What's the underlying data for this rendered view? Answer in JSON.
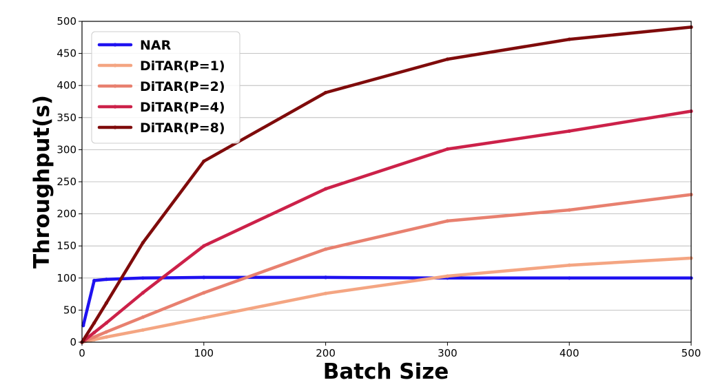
{
  "chart_data": {
    "type": "line",
    "title": "",
    "xlabel": "Batch Size",
    "ylabel": "Throughput(s)",
    "xlim": [
      0,
      500
    ],
    "ylim": [
      0,
      500
    ],
    "xticks": [
      0,
      100,
      200,
      300,
      400,
      500
    ],
    "yticks": [
      0,
      50,
      100,
      150,
      200,
      250,
      300,
      350,
      400,
      450,
      500
    ],
    "grid": "horizontal",
    "legend_position": "top-left",
    "series": [
      {
        "name": "NAR",
        "color": "#1f12f0",
        "x": [
          1,
          10,
          20,
          50,
          100,
          200,
          300,
          400,
          500
        ],
        "y": [
          26,
          96,
          98,
          100,
          101,
          101,
          100,
          100,
          100
        ]
      },
      {
        "name": "DiTAR(P=1)",
        "color": "#f4a582",
        "x": [
          0,
          10,
          20,
          50,
          100,
          200,
          300,
          400,
          500
        ],
        "y": [
          0,
          4,
          8,
          19,
          38,
          76,
          103,
          120,
          131
        ]
      },
      {
        "name": "DiTAR(P=2)",
        "color": "#e8806f",
        "x": [
          0,
          10,
          20,
          50,
          100,
          200,
          300,
          400,
          500
        ],
        "y": [
          0,
          8,
          16,
          39,
          77,
          145,
          189,
          206,
          230
        ]
      },
      {
        "name": "DiTAR(P=4)",
        "color": "#cc2149",
        "x": [
          0,
          10,
          20,
          50,
          100,
          200,
          300,
          400,
          500
        ],
        "y": [
          0,
          15,
          30,
          77,
          150,
          239,
          301,
          329,
          360
        ]
      },
      {
        "name": "DiTAR(P=8)",
        "color": "#7f0b0b",
        "x": [
          0,
          10,
          20,
          50,
          100,
          200,
          300,
          400,
          500
        ],
        "y": [
          0,
          30,
          61,
          155,
          282,
          389,
          441,
          472,
          491
        ]
      }
    ]
  }
}
